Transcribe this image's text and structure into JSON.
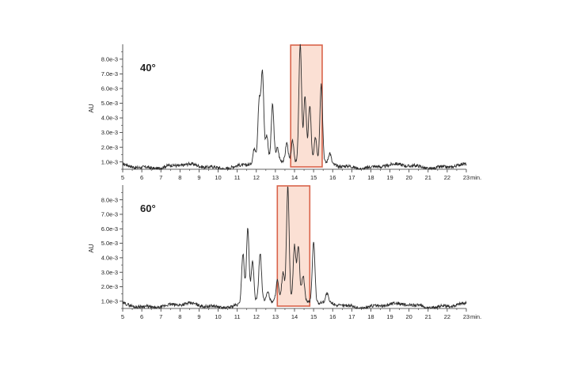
{
  "chart_data": [
    {
      "type": "line",
      "title": "40°",
      "xlabel": "min.",
      "ylabel": "AU",
      "xlim": [
        5,
        23
      ],
      "ylim": [
        0.0005,
        0.0088
      ],
      "x_ticks": [
        5,
        6,
        7,
        8,
        9,
        10,
        11,
        12,
        13,
        14,
        15,
        16,
        17,
        18,
        19,
        20,
        21,
        22,
        23
      ],
      "x_tick_labels": [
        "5",
        "6",
        "7",
        "8",
        "9",
        "10",
        "11",
        "12",
        "13",
        "14",
        "15",
        "16",
        "17",
        "18",
        "19",
        "20",
        "21",
        "22",
        "23"
      ],
      "y_ticks": [
        0.001,
        0.002,
        0.003,
        0.004,
        0.005,
        0.006,
        0.007,
        0.008
      ],
      "y_tick_labels": [
        "1.0e-3",
        "2.0e-3",
        "3.0e-3",
        "4.0e-3",
        "5.0e-3",
        "6.0e-3",
        "7.0e-3",
        "8.0e-3"
      ],
      "baseline": 0.0007,
      "peaks": [
        {
          "x": 11.9,
          "y": 0.0017
        },
        {
          "x": 12.15,
          "y": 0.0047
        },
        {
          "x": 12.32,
          "y": 0.0067
        },
        {
          "x": 12.55,
          "y": 0.0025
        },
        {
          "x": 12.85,
          "y": 0.0046
        },
        {
          "x": 13.1,
          "y": 0.0016
        },
        {
          "x": 13.6,
          "y": 0.002
        },
        {
          "x": 13.9,
          "y": 0.0022
        },
        {
          "x": 14.3,
          "y": 0.0088
        },
        {
          "x": 14.55,
          "y": 0.0052
        },
        {
          "x": 14.8,
          "y": 0.0046
        },
        {
          "x": 15.1,
          "y": 0.0025
        },
        {
          "x": 15.4,
          "y": 0.0061
        },
        {
          "x": 15.85,
          "y": 0.0014
        }
      ],
      "highlight": {
        "x_start": 13.8,
        "x_end": 15.45
      },
      "line_color": "#2b2b2b",
      "highlight_fill": "#fbe0d4",
      "highlight_stroke": "#d9634a"
    },
    {
      "type": "line",
      "title": "60°",
      "xlabel": "min.",
      "ylabel": "AU",
      "xlim": [
        5,
        23
      ],
      "ylim": [
        0.0005,
        0.0088
      ],
      "x_ticks": [
        5,
        6,
        7,
        8,
        9,
        10,
        11,
        12,
        13,
        14,
        15,
        16,
        17,
        18,
        19,
        20,
        21,
        22,
        23
      ],
      "x_tick_labels": [
        "5",
        "6",
        "7",
        "8",
        "9",
        "10",
        "11",
        "12",
        "13",
        "14",
        "15",
        "16",
        "17",
        "18",
        "19",
        "20",
        "21",
        "22",
        "23"
      ],
      "y_ticks": [
        0.001,
        0.002,
        0.003,
        0.004,
        0.005,
        0.006,
        0.007,
        0.008
      ],
      "y_tick_labels": [
        "1.0e-3",
        "2.0e-3",
        "3.0e-3",
        "4.0e-3",
        "5.0e-3",
        "6.0e-3",
        "7.0e-3",
        "8.0e-3"
      ],
      "baseline": 0.0007,
      "peaks": [
        {
          "x": 11.3,
          "y": 0.0042
        },
        {
          "x": 11.55,
          "y": 0.0059
        },
        {
          "x": 11.8,
          "y": 0.0035
        },
        {
          "x": 12.2,
          "y": 0.004
        },
        {
          "x": 12.6,
          "y": 0.0014
        },
        {
          "x": 13.1,
          "y": 0.0021
        },
        {
          "x": 13.4,
          "y": 0.0026
        },
        {
          "x": 13.65,
          "y": 0.0086
        },
        {
          "x": 14.0,
          "y": 0.0046
        },
        {
          "x": 14.2,
          "y": 0.0045
        },
        {
          "x": 14.45,
          "y": 0.0025
        },
        {
          "x": 15.0,
          "y": 0.0049
        },
        {
          "x": 15.7,
          "y": 0.0013
        }
      ],
      "highlight": {
        "x_start": 13.1,
        "x_end": 14.8
      },
      "line_color": "#2b2b2b",
      "highlight_fill": "#fbe0d4",
      "highlight_stroke": "#d9634a"
    }
  ]
}
